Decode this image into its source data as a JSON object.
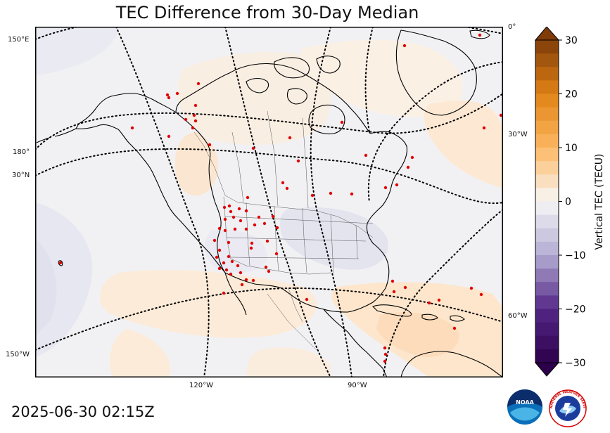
{
  "title": "TEC Difference from 30-Day Median",
  "timestamp": "2025-06-30 02:15Z",
  "colorbar": {
    "label": "Vertical TEC (TECU)",
    "ticks": [
      30,
      20,
      10,
      0,
      -10,
      -20,
      -30
    ],
    "tick_labels": [
      "30",
      "20",
      "10",
      "0",
      "−10",
      "−20",
      "−30"
    ],
    "min": -30,
    "max": 30,
    "colormap": "PuOr_r",
    "extend": "both"
  },
  "map": {
    "projection": "polar stereographic (North America)",
    "graticule_labels": {
      "left": [
        "150°E",
        "180°",
        "30°N",
        "150°W"
      ],
      "right": [
        "0°",
        "30°W",
        "60°W"
      ],
      "bottom": [
        "120°W",
        "90°W"
      ]
    },
    "station_marker_color": "#e00000",
    "colors": {
      "neutral": "#f1f1f3",
      "positive_light": "#fde6cf",
      "negative_light": "#e6e6f0",
      "coast": "#000000",
      "graticule": "#000000"
    }
  },
  "logos": {
    "noaa": "NOAA",
    "nws": "NATIONAL WEATHER SERVICE"
  }
}
